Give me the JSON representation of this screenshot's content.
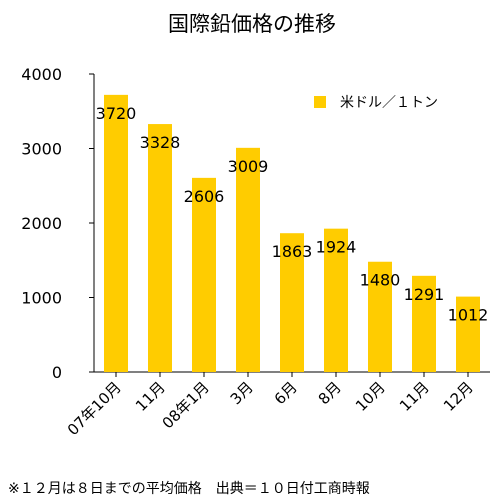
{
  "chart_data": {
    "type": "bar",
    "title": "国際鉛価格の推移",
    "categories": [
      "07年10月",
      "11月",
      "08年1月",
      "3月",
      "6月",
      "8月",
      "10月",
      "11月",
      "12月"
    ],
    "series": [
      {
        "name": "米ドル／１トン",
        "values": [
          3720,
          3328,
          2606,
          3009,
          1863,
          1924,
          1480,
          1291,
          1012
        ]
      }
    ],
    "ylim": [
      0,
      4000
    ],
    "yticks": [
      0,
      1000,
      2000,
      3000,
      4000
    ],
    "grid": false,
    "legend": "top-right",
    "color": "#FFCC00"
  },
  "note": "※１２月は８日までの平均価格　出典＝１０日付工商時報"
}
